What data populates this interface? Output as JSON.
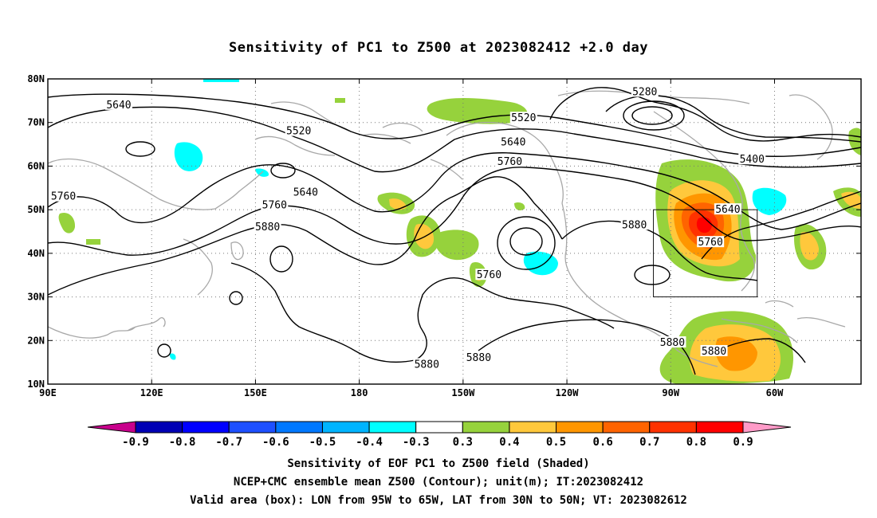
{
  "title": "Sensitivity of PC1 to Z500 at 2023082412 +2.0 day",
  "map": {
    "lon_min": 90,
    "lon_max": 325,
    "lat_min": 10,
    "lat_max": 80,
    "lon_ticks": [
      {
        "lon": 90,
        "label": "90E"
      },
      {
        "lon": 120,
        "label": "120E"
      },
      {
        "lon": 150,
        "label": "150E"
      },
      {
        "lon": 180,
        "label": "180"
      },
      {
        "lon": 210,
        "label": "150W"
      },
      {
        "lon": 240,
        "label": "120W"
      },
      {
        "lon": 270,
        "label": "90W"
      },
      {
        "lon": 300,
        "label": "60W"
      }
    ],
    "lat_ticks": [
      {
        "lat": 80,
        "label": "80N"
      },
      {
        "lat": 70,
        "label": "70N"
      },
      {
        "lat": 60,
        "label": "60N"
      },
      {
        "lat": 50,
        "label": "50N"
      },
      {
        "lat": 40,
        "label": "40N"
      },
      {
        "lat": 30,
        "label": "30N"
      },
      {
        "lat": 20,
        "label": "20N"
      },
      {
        "lat": 10,
        "label": "10N"
      }
    ],
    "valid_box": {
      "lon_min": 265,
      "lon_max": 295,
      "lat_min": 30,
      "lat_max": 50
    },
    "contour_labels": [
      {
        "text": "5640",
        "lon": 110.5,
        "lat": 74
      },
      {
        "text": "5520",
        "lon": 162.5,
        "lat": 68
      },
      {
        "text": "5520",
        "lon": 227.5,
        "lat": 71
      },
      {
        "text": "5280",
        "lon": 262.5,
        "lat": 77
      },
      {
        "text": "5400",
        "lon": 293.5,
        "lat": 61.5
      },
      {
        "text": "5640",
        "lon": 224.5,
        "lat": 65.5
      },
      {
        "text": "5760",
        "lon": 223.5,
        "lat": 61
      },
      {
        "text": "5640",
        "lon": 164.5,
        "lat": 54
      },
      {
        "text": "5760",
        "lon": 155.5,
        "lat": 51
      },
      {
        "text": "5880",
        "lon": 153.5,
        "lat": 46
      },
      {
        "text": "5760",
        "lon": 94.5,
        "lat": 53
      },
      {
        "text": "5880",
        "lon": 259.5,
        "lat": 46.5
      },
      {
        "text": "5640",
        "lon": 286.5,
        "lat": 50
      },
      {
        "text": "5760",
        "lon": 281.5,
        "lat": 42.5
      },
      {
        "text": "5760",
        "lon": 217.5,
        "lat": 35
      },
      {
        "text": "5880",
        "lon": 270.5,
        "lat": 19.5
      },
      {
        "text": "5880",
        "lon": 282.5,
        "lat": 17.5
      },
      {
        "text": "5880",
        "lon": 214.5,
        "lat": 16
      },
      {
        "text": "5880",
        "lon": 199.5,
        "lat": 14.5
      }
    ]
  },
  "colorbar": {
    "boundaries": [
      "-0.9",
      "-0.8",
      "-0.7",
      "-0.6",
      "-0.5",
      "-0.4",
      "-0.3",
      "0.3",
      "0.4",
      "0.5",
      "0.6",
      "0.7",
      "0.8",
      "0.9"
    ],
    "colors": [
      "#c8008c",
      "#0000b4",
      "#0000ff",
      "#1e50ff",
      "#0078ff",
      "#00b4ff",
      "#00ffff",
      "#ffffff",
      "#96d23c",
      "#ffc83c",
      "#ff9600",
      "#ff6400",
      "#ff3200",
      "#ff0000",
      "#ff9bc8"
    ]
  },
  "caption": {
    "line1": "Sensitivity of EOF PC1 to Z500 field (Shaded)",
    "line2": "NCEP+CMC ensemble mean Z500 (Contour); unit(m); IT:2023082412",
    "line3": "Valid area (box): LON from 95W to 65W, LAT from 30N to 50N; VT: 2023082612"
  }
}
